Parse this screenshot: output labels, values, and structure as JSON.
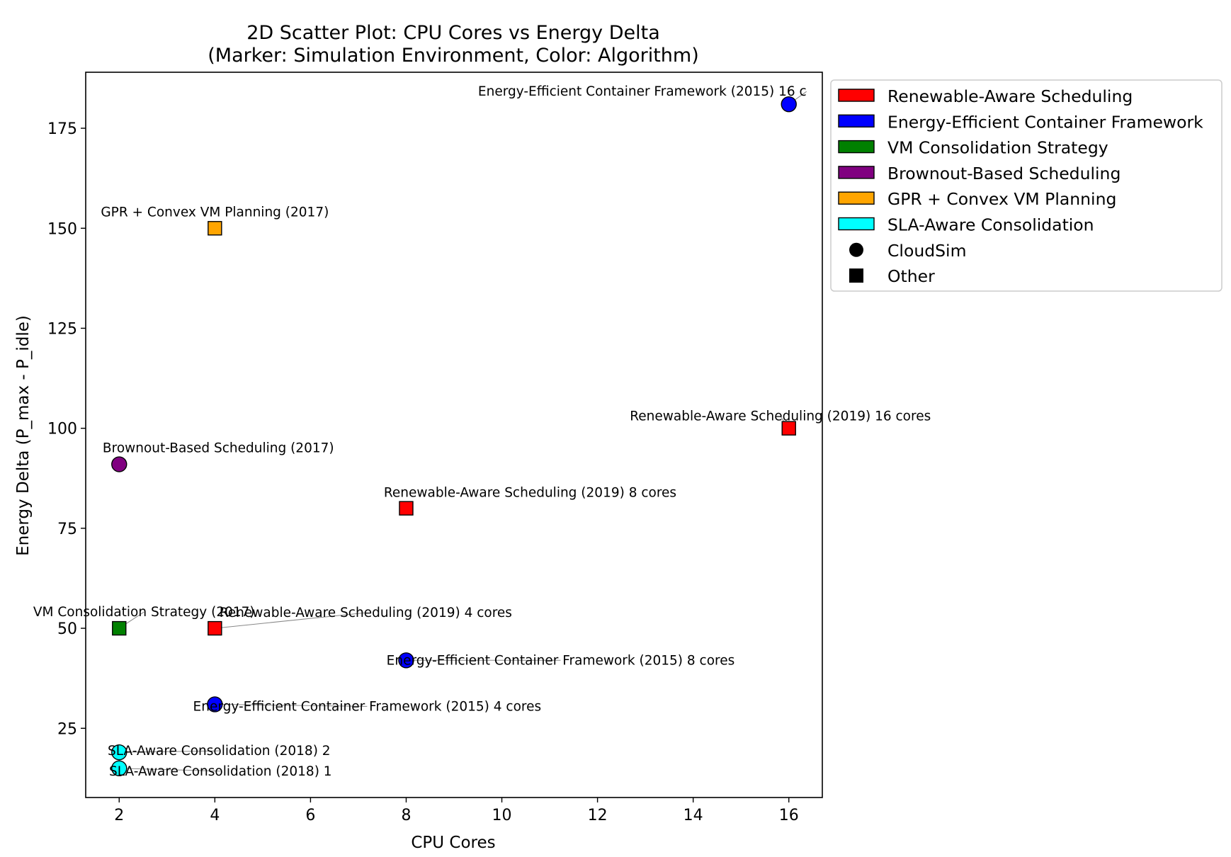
{
  "chart_data": {
    "type": "scatter",
    "title": "2D Scatter Plot: CPU Cores vs Energy Delta",
    "subtitle": "(Marker: Simulation Environment, Color: Algorithm)",
    "xlabel": "CPU Cores",
    "ylabel": "Energy Delta (P_max - P_idle)",
    "xlim": [
      1.3,
      16.7
    ],
    "ylim": [
      7.7,
      189
    ],
    "xticks": [
      2,
      4,
      6,
      8,
      10,
      12,
      14,
      16
    ],
    "yticks": [
      25,
      50,
      75,
      100,
      125,
      150,
      175
    ],
    "grid": false,
    "legend_placement": "outside-right",
    "algorithms": [
      {
        "name": "Renewable-Aware Scheduling",
        "color": "#ff0000"
      },
      {
        "name": "Energy-Efficient Container Framework",
        "color": "#0000ff"
      },
      {
        "name": "VM Consolidation Strategy",
        "color": "#008000"
      },
      {
        "name": "Brownout-Based Scheduling",
        "color": "#800080"
      },
      {
        "name": "GPR + Convex VM Planning",
        "color": "#ffa500"
      },
      {
        "name": "SLA-Aware Consolidation",
        "color": "#00ffff"
      }
    ],
    "environments": [
      {
        "name": "CloudSim",
        "marker": "circle"
      },
      {
        "name": "Other",
        "marker": "square"
      }
    ],
    "points": [
      {
        "x": 16,
        "y": 181,
        "algorithm": 1,
        "env": "CloudSim",
        "label": "Energy-Efficient Container Framework (2015) 16 c"
      },
      {
        "x": 4,
        "y": 150,
        "algorithm": 4,
        "env": "Other",
        "label": "GPR + Convex VM Planning (2017)"
      },
      {
        "x": 16,
        "y": 100,
        "algorithm": 0,
        "env": "Other",
        "label": "Renewable-Aware Scheduling (2019) 16 cores"
      },
      {
        "x": 2,
        "y": 91,
        "algorithm": 3,
        "env": "CloudSim",
        "label": "Brownout-Based Scheduling (2017)"
      },
      {
        "x": 8,
        "y": 80,
        "algorithm": 0,
        "env": "Other",
        "label": "Renewable-Aware Scheduling (2019) 8 cores"
      },
      {
        "x": 2,
        "y": 50,
        "algorithm": 2,
        "env": "Other",
        "label": "VM Consolidation Strategy (2017)"
      },
      {
        "x": 4,
        "y": 50,
        "algorithm": 0,
        "env": "Other",
        "label": "Renewable-Aware Scheduling (2019) 4 cores"
      },
      {
        "x": 8,
        "y": 42,
        "algorithm": 1,
        "env": "CloudSim",
        "label": "Energy-Efficient Container Framework (2015) 8 cores"
      },
      {
        "x": 4,
        "y": 31,
        "algorithm": 1,
        "env": "CloudSim",
        "label": "Energy-Efficient Container Framework (2015) 4 cores"
      },
      {
        "x": 2,
        "y": 19,
        "algorithm": 5,
        "env": "CloudSim",
        "label": "SLA-Aware Consolidation (2018) 2"
      },
      {
        "x": 2,
        "y": 15,
        "algorithm": 5,
        "env": "CloudSim",
        "label": "SLA-Aware Consolidation (2018) 1"
      }
    ]
  }
}
